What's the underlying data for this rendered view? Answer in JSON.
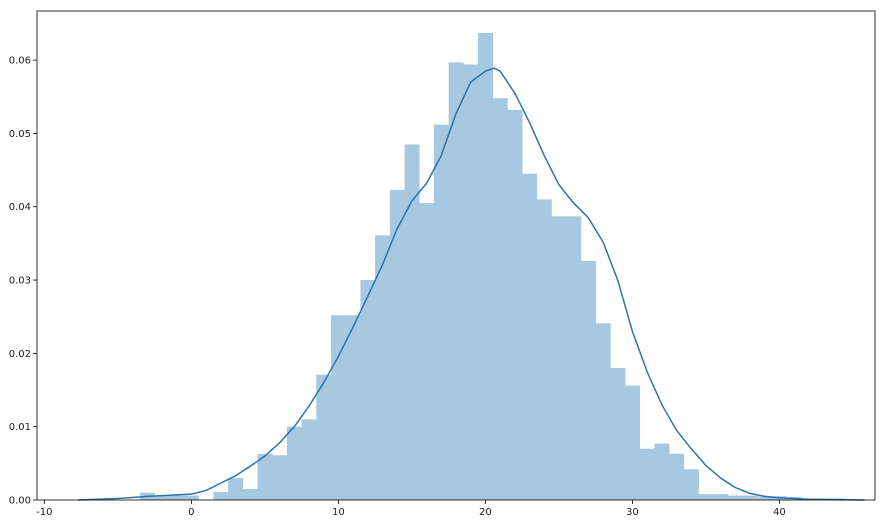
{
  "chart_data": {
    "type": "bar",
    "title": "",
    "xlabel": "",
    "ylabel": "",
    "xlim": [
      -10.5,
      46.5
    ],
    "ylim": [
      0,
      0.0667
    ],
    "grid": false,
    "xticks": [
      -10,
      0,
      10,
      20,
      30,
      40
    ],
    "yticks": [
      0.0,
      0.01,
      0.02,
      0.03,
      0.04,
      0.05,
      0.06
    ],
    "ytick_labels": [
      "0.00",
      "0.01",
      "0.02",
      "0.03",
      "0.04",
      "0.05",
      "0.06"
    ],
    "histogram": {
      "bin_edges": [
        -3.5,
        -2.5,
        -1.5,
        -0.5,
        0.5,
        1.5,
        2.5,
        3.5,
        4.5,
        5.5,
        6.5,
        7.5,
        8.5,
        9.5,
        10.5,
        11.5,
        12.5,
        13.5,
        14.5,
        15.5,
        16.5,
        17.5,
        18.5,
        19.5,
        20.5,
        21.5,
        22.5,
        23.5,
        24.5,
        25.5,
        26.5,
        27.5,
        28.5,
        29.5,
        30.5,
        31.5,
        32.5,
        33.5,
        34.5,
        35.5,
        36.5,
        37.5,
        38.5,
        39.5,
        40.5,
        41.5,
        42.5,
        43.5,
        44.5
      ],
      "densities": [
        0.001,
        0.0006,
        0.0006,
        0.0006,
        0.0,
        0.0011,
        0.003,
        0.0015,
        0.0063,
        0.0061,
        0.01,
        0.011,
        0.0171,
        0.0252,
        0.0252,
        0.03,
        0.0361,
        0.0423,
        0.0485,
        0.0405,
        0.0512,
        0.0597,
        0.0594,
        0.0637,
        0.0548,
        0.0532,
        0.0445,
        0.041,
        0.0387,
        0.0387,
        0.0326,
        0.0241,
        0.018,
        0.0156,
        0.007,
        0.0077,
        0.0063,
        0.0042,
        0.0008,
        0.0008,
        0.0006,
        0.0006,
        0.0005,
        0.0005,
        0.0004,
        0.0002,
        0.0002,
        0.0002
      ],
      "color": "#a6c8e0"
    },
    "kde": {
      "color": "#2c74b0",
      "x": [
        -7.7,
        -5,
        -3,
        -1,
        0,
        1,
        2,
        3,
        4,
        5,
        6,
        7,
        8,
        9,
        10,
        11,
        12,
        13,
        14,
        15,
        16,
        17,
        18,
        19,
        20,
        20.6,
        21,
        22,
        23,
        24,
        25,
        26,
        27,
        28,
        29,
        30,
        31,
        32,
        33,
        34,
        35,
        36,
        37,
        38,
        39,
        40,
        42,
        44,
        45.8
      ],
      "y": [
        0.0,
        0.0002,
        0.0005,
        0.0007,
        0.0008,
        0.0013,
        0.0023,
        0.0033,
        0.0046,
        0.006,
        0.0078,
        0.01,
        0.0128,
        0.016,
        0.0196,
        0.0236,
        0.0278,
        0.0321,
        0.037,
        0.0408,
        0.0432,
        0.047,
        0.0527,
        0.057,
        0.0585,
        0.0589,
        0.0585,
        0.0555,
        0.0515,
        0.047,
        0.043,
        0.0405,
        0.0385,
        0.0352,
        0.03,
        0.023,
        0.0175,
        0.013,
        0.0095,
        0.007,
        0.0047,
        0.003,
        0.0017,
        0.0009,
        0.0005,
        0.0003,
        0.0001,
        5e-05,
        0.0
      ]
    }
  }
}
